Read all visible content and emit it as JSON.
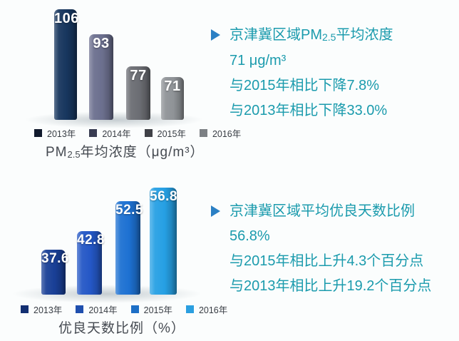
{
  "page": {
    "background": "#fbfdfd"
  },
  "chart_data": [
    {
      "type": "bar",
      "title": "PM2.5年均浓度（μg/m³）",
      "title_parts": {
        "prefix": "PM",
        "sub": "2.5",
        "suffix": "年均浓度（μg/m³）"
      },
      "categories": [
        "2013年",
        "2014年",
        "2015年",
        "2016年"
      ],
      "values": [
        106,
        93,
        77,
        71
      ],
      "ylabel": "μg/m³",
      "ylim": [
        0,
        115
      ],
      "grid": false,
      "legend_position": "bottom",
      "data_labels": true,
      "bar_colors": [
        "#17365e",
        "#6b6f8e",
        "#6b6d73",
        "#8f9397"
      ],
      "legend_colors": [
        "#111a2d",
        "#383c52",
        "#3f4147",
        "#7c8084"
      ]
    },
    {
      "type": "bar",
      "title": "优良天数比例（%）",
      "title_parts": {
        "prefix": "",
        "sub": "",
        "suffix": "优良天数比例（%）"
      },
      "categories": [
        "2013年",
        "2014年",
        "2015年",
        "2016年"
      ],
      "values": [
        37.6,
        42.8,
        52.5,
        56.8
      ],
      "ylabel": "%",
      "ylim": [
        25,
        60
      ],
      "grid": false,
      "legend_position": "bottom",
      "data_labels": true,
      "bar_colors": [
        "#193f96",
        "#2457c6",
        "#1d71d2",
        "#26a0e4"
      ],
      "legend_colors": [
        "#132f72",
        "#1f4fae",
        "#1d6fc6",
        "#2b9fe0"
      ]
    }
  ],
  "annotations": [
    {
      "marker": "▶",
      "marker_color": "#2b80c4",
      "text_color": "#1b9bad",
      "line1_parts": {
        "prefix": "京津冀区域PM",
        "sub": "2.5",
        "suffix": "平均浓度"
      },
      "lines": [
        "京津冀区域PM2.5平均浓度",
        "71 μg/m³",
        "与2015年相比下降7.8%",
        "与2013年相比下降33.0%"
      ]
    },
    {
      "marker": "▶",
      "marker_color": "#2b80c4",
      "text_color": "#1b9bad",
      "lines": [
        "京津冀区域平均优良天数比例",
        "56.8%",
        "与2015年相比上升4.3个百分点",
        "与2013年相比上升19.2个百分点"
      ]
    }
  ]
}
